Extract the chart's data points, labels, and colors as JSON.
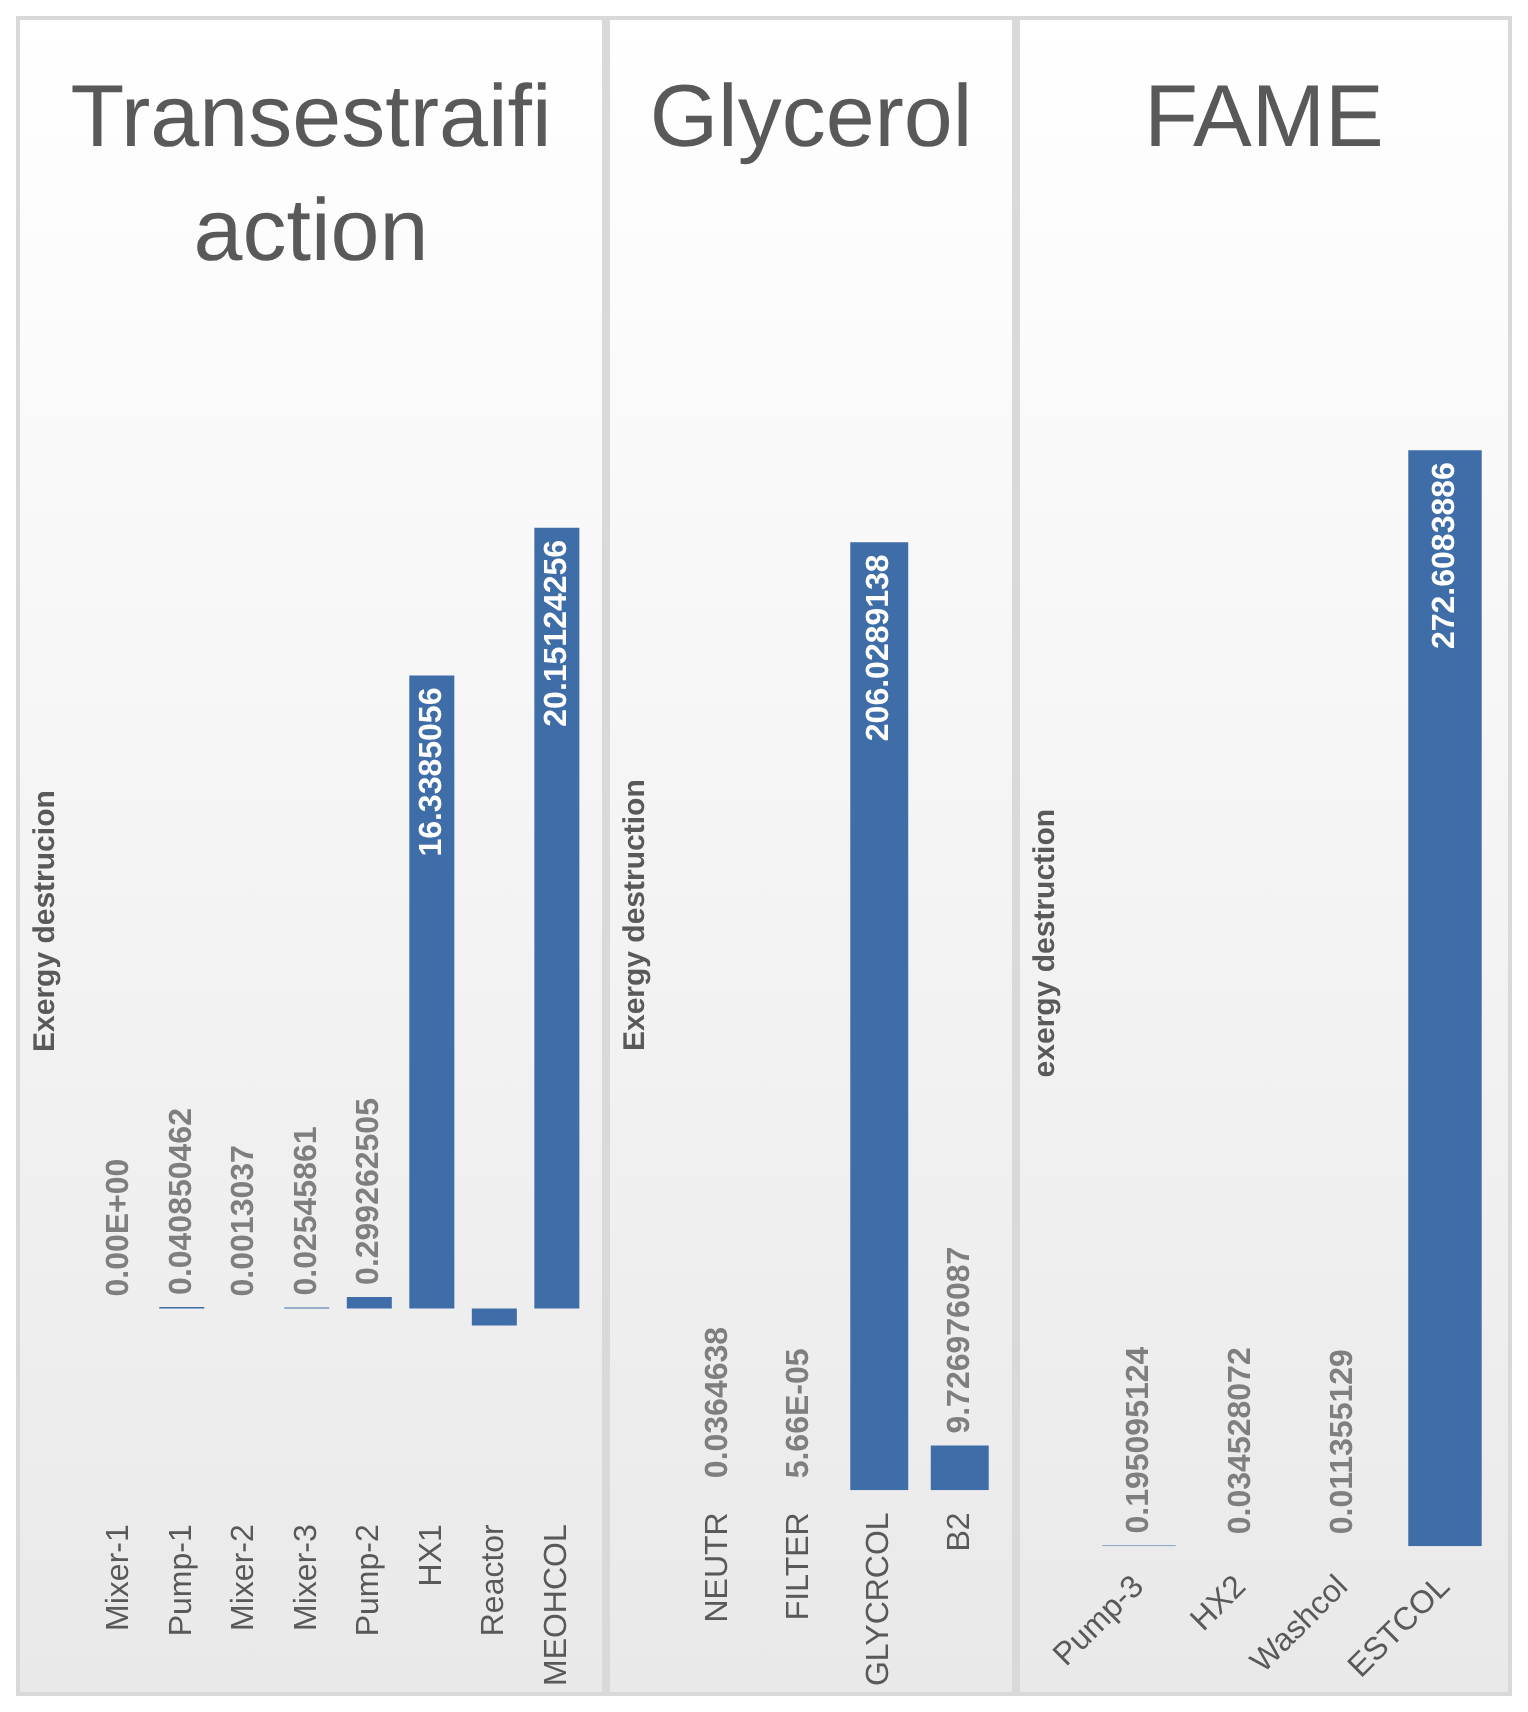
{
  "chart_data": [
    {
      "type": "bar",
      "title": "Transestraifiaction",
      "ylabel": "Exergy destrucion",
      "categories": [
        "Mixer-1",
        "Pump-1",
        "Mixer-2",
        "Mixer-3",
        "Pump-2",
        "HX1",
        "Reactor",
        "MEOHCOL"
      ],
      "values": [
        0,
        0.040850462,
        0.0013037,
        0.02545861,
        0.299262505,
        16.3385056,
        -0.44,
        20.15124256
      ],
      "color": "#3e6da8",
      "value_labels": [
        "0.00E+00",
        "0.040850462",
        "0.0013037",
        "0.02545861",
        "0.299262505",
        "16.3385056",
        null,
        "20.15124256"
      ]
    },
    {
      "type": "bar",
      "title": "Glycerol",
      "ylabel": "Exergy destruction",
      "categories": [
        "NEUTR",
        "FILTER",
        "GLYCRCOL",
        "B2"
      ],
      "values": [
        0.0364638,
        5.66e-05,
        206.0289138,
        9.726976087
      ],
      "color": "#3e6da8",
      "value_labels": [
        "0.0364638",
        "5.66E-05",
        "206.0289138",
        "9.726976087"
      ]
    },
    {
      "type": "bar",
      "title": "FAME",
      "ylabel": "exergy destruction",
      "categories": [
        "Pump-3",
        "HX2",
        "Washcol",
        "ESTCOL"
      ],
      "values": [
        0.195095124,
        0.034528072,
        0.011355129,
        272.6083886
      ],
      "color": "#3e6da8",
      "value_labels": [
        "0.195095124",
        "0.034528072",
        "0.011355129",
        "272.6083886"
      ]
    }
  ]
}
